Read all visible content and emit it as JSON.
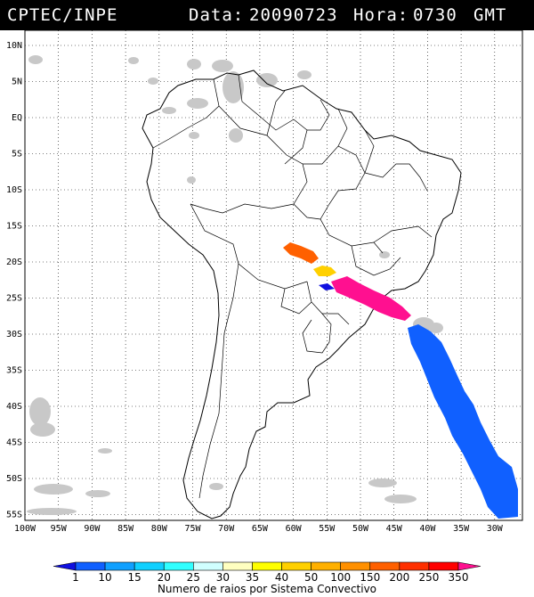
{
  "header": {
    "source": "CPTEC/INPE",
    "date_label": "Data:",
    "date_value": "20090723",
    "time_label": "Hora:",
    "time_value": "0730",
    "time_zone": "GMT"
  },
  "axes": {
    "lat_labels": [
      "10N",
      "5N",
      "EQ",
      "5S",
      "10S",
      "15S",
      "20S",
      "25S",
      "30S",
      "35S",
      "40S",
      "45S",
      "50S",
      "55S"
    ],
    "lon_labels": [
      "100W",
      "95W",
      "90W",
      "85W",
      "80W",
      "75W",
      "70W",
      "65W",
      "60W",
      "55W",
      "50W",
      "45W",
      "40W",
      "35W",
      "30W"
    ]
  },
  "legend": {
    "ticks": [
      "1",
      "10",
      "15",
      "20",
      "25",
      "30",
      "35",
      "40",
      "50",
      "100",
      "150",
      "200",
      "250",
      "350"
    ],
    "colors": [
      "#1010e0",
      "#1060ff",
      "#10a0ff",
      "#10d0ff",
      "#30ffff",
      "#d0ffff",
      "#ffffc0",
      "#ffff00",
      "#ffd000",
      "#ffb000",
      "#ff9000",
      "#ff6000",
      "#ff3000",
      "#ff0000",
      "#ff1090"
    ],
    "title": "Numero de raios por Sistema Convectivo"
  }
}
